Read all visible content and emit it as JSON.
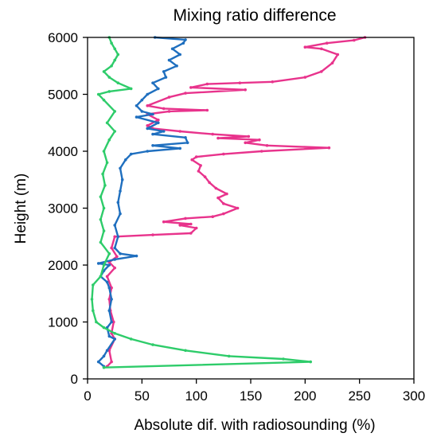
{
  "chart_data": {
    "type": "line",
    "title": "Mixing  ratio difference",
    "xlabel": "Absolute dif. with radiosounding (%)",
    "ylabel": "Height (m)",
    "xlim": [
      0,
      300
    ],
    "ylim": [
      0,
      6000
    ],
    "x_ticks": [
      "0",
      "50",
      "100",
      "150",
      "200",
      "250",
      "300"
    ],
    "y_ticks": [
      "0",
      "1000",
      "2000",
      "3000",
      "4000",
      "5000",
      "6000"
    ],
    "grid": false,
    "legend": "none",
    "series": [
      {
        "color": "#e8338c",
        "points": [
          [
            18,
            220
          ],
          [
            22,
            300
          ],
          [
            20,
            500
          ],
          [
            25,
            700
          ],
          [
            22,
            800
          ],
          [
            24,
            1000
          ],
          [
            21,
            1200
          ],
          [
            20,
            1400
          ],
          [
            22,
            1600
          ],
          [
            18,
            1800
          ],
          [
            25,
            1950
          ],
          [
            20,
            2050
          ],
          [
            27,
            2150
          ],
          [
            22,
            2300
          ],
          [
            25,
            2500
          ],
          [
            60,
            2530
          ],
          [
            95,
            2560
          ],
          [
            100,
            2650
          ],
          [
            85,
            2700
          ],
          [
            95,
            2720
          ],
          [
            70,
            2760
          ],
          [
            90,
            2820
          ],
          [
            115,
            2850
          ],
          [
            125,
            2900
          ],
          [
            138,
            3000
          ],
          [
            125,
            3080
          ],
          [
            120,
            3180
          ],
          [
            128,
            3250
          ],
          [
            118,
            3350
          ],
          [
            112,
            3450
          ],
          [
            108,
            3550
          ],
          [
            102,
            3650
          ],
          [
            104,
            3750
          ],
          [
            96,
            3850
          ],
          [
            100,
            3900
          ],
          [
            125,
            3950
          ],
          [
            160,
            4000
          ],
          [
            222,
            4060
          ],
          [
            165,
            4100
          ],
          [
            145,
            4150
          ],
          [
            158,
            4200
          ],
          [
            120,
            4230
          ],
          [
            148,
            4260
          ],
          [
            115,
            4300
          ],
          [
            85,
            4350
          ],
          [
            60,
            4400
          ],
          [
            55,
            4450
          ],
          [
            65,
            4550
          ],
          [
            55,
            4650
          ],
          [
            75,
            4700
          ],
          [
            110,
            4720
          ],
          [
            70,
            4750
          ],
          [
            55,
            4800
          ],
          [
            75,
            4950
          ],
          [
            90,
            5020
          ],
          [
            145,
            5080
          ],
          [
            95,
            5120
          ],
          [
            110,
            5180
          ],
          [
            140,
            5200
          ],
          [
            170,
            5220
          ],
          [
            200,
            5300
          ],
          [
            215,
            5400
          ],
          [
            225,
            5550
          ],
          [
            230,
            5700
          ],
          [
            215,
            5800
          ],
          [
            200,
            5830
          ],
          [
            220,
            5900
          ],
          [
            245,
            5950
          ],
          [
            255,
            6000
          ]
        ]
      },
      {
        "color": "#1f6fbf",
        "points": [
          [
            15,
            220
          ],
          [
            10,
            300
          ],
          [
            15,
            400
          ],
          [
            18,
            500
          ],
          [
            25,
            700
          ],
          [
            20,
            750
          ],
          [
            18,
            900
          ],
          [
            22,
            1000
          ],
          [
            20,
            1200
          ],
          [
            22,
            1400
          ],
          [
            20,
            1600
          ],
          [
            18,
            1700
          ],
          [
            12,
            1800
          ],
          [
            15,
            1900
          ],
          [
            20,
            2000
          ],
          [
            10,
            2030
          ],
          [
            25,
            2100
          ],
          [
            45,
            2160
          ],
          [
            30,
            2200
          ],
          [
            25,
            2300
          ],
          [
            28,
            2500
          ],
          [
            25,
            2700
          ],
          [
            30,
            2900
          ],
          [
            28,
            3100
          ],
          [
            30,
            3300
          ],
          [
            32,
            3500
          ],
          [
            30,
            3700
          ],
          [
            35,
            3850
          ],
          [
            40,
            3950
          ],
          [
            55,
            4000
          ],
          [
            85,
            4050
          ],
          [
            60,
            4100
          ],
          [
            92,
            4150
          ],
          [
            90,
            4240
          ],
          [
            60,
            4300
          ],
          [
            70,
            4350
          ],
          [
            55,
            4400
          ],
          [
            65,
            4500
          ],
          [
            45,
            4600
          ],
          [
            60,
            4650
          ],
          [
            50,
            4700
          ],
          [
            45,
            4800
          ],
          [
            50,
            4900
          ],
          [
            55,
            5000
          ],
          [
            65,
            5100
          ],
          [
            60,
            5200
          ],
          [
            72,
            5300
          ],
          [
            70,
            5400
          ],
          [
            82,
            5500
          ],
          [
            75,
            5600
          ],
          [
            85,
            5700
          ],
          [
            78,
            5800
          ],
          [
            88,
            5900
          ],
          [
            90,
            5960
          ],
          [
            62,
            6000
          ]
        ]
      },
      {
        "color": "#2ecc6a",
        "points": [
          [
            15,
            200
          ],
          [
            205,
            300
          ],
          [
            180,
            350
          ],
          [
            130,
            400
          ],
          [
            90,
            500
          ],
          [
            60,
            600
          ],
          [
            40,
            700
          ],
          [
            25,
            800
          ],
          [
            15,
            900
          ],
          [
            8,
            1000
          ],
          [
            5,
            1200
          ],
          [
            4,
            1400
          ],
          [
            5,
            1650
          ],
          [
            12,
            1800
          ],
          [
            15,
            2000
          ],
          [
            20,
            2200
          ],
          [
            12,
            2400
          ],
          [
            15,
            2600
          ],
          [
            12,
            2800
          ],
          [
            15,
            3000
          ],
          [
            12,
            3200
          ],
          [
            16,
            3400
          ],
          [
            14,
            3600
          ],
          [
            18,
            3800
          ],
          [
            15,
            4000
          ],
          [
            20,
            4200
          ],
          [
            25,
            4350
          ],
          [
            18,
            4500
          ],
          [
            25,
            4700
          ],
          [
            15,
            4900
          ],
          [
            10,
            5000
          ],
          [
            20,
            5050
          ],
          [
            40,
            5100
          ],
          [
            28,
            5200
          ],
          [
            20,
            5300
          ],
          [
            15,
            5400
          ],
          [
            22,
            5500
          ],
          [
            25,
            5600
          ],
          [
            28,
            5700
          ],
          [
            25,
            5800
          ],
          [
            22,
            5900
          ],
          [
            20,
            6000
          ]
        ]
      }
    ]
  }
}
